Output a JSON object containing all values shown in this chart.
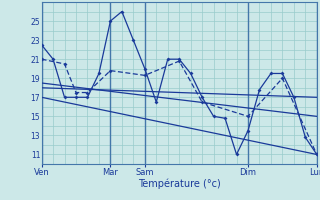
{
  "background_color": "#cce8e8",
  "grid_color": "#99cccc",
  "line_color": "#1a3a9a",
  "dark_line_color": "#2244aa",
  "xlabel": "Température (°c)",
  "ylim": [
    10,
    27
  ],
  "xlim": [
    0,
    24
  ],
  "yticks": [
    11,
    13,
    15,
    17,
    19,
    21,
    23,
    25
  ],
  "xtick_positions": [
    0,
    6,
    9,
    18,
    24
  ],
  "xtick_labels": [
    "Ven",
    "Mar",
    "Sam",
    "Dim",
    "Lun"
  ],
  "vline_positions": [
    0,
    6,
    9,
    18,
    24
  ],
  "line1_x": [
    0,
    1,
    2,
    3,
    4,
    5,
    6,
    7,
    8,
    9,
    10,
    11,
    12,
    13,
    14,
    15,
    16,
    17,
    18,
    19,
    20,
    21,
    22,
    23,
    24
  ],
  "line1_y": [
    22.5,
    21.0,
    17.0,
    17.0,
    17.0,
    19.5,
    25.0,
    26.0,
    23.0,
    20.0,
    16.5,
    21.0,
    21.0,
    19.5,
    17.0,
    15.0,
    14.8,
    11.0,
    13.5,
    17.8,
    19.5,
    19.5,
    17.0,
    12.8,
    11.0
  ],
  "line2_x": [
    0,
    2,
    3,
    4,
    6,
    9,
    12,
    14,
    18,
    21,
    24
  ],
  "line2_y": [
    21.0,
    20.5,
    17.5,
    17.5,
    19.8,
    19.3,
    20.8,
    16.5,
    15.0,
    19.0,
    11.0
  ],
  "line3_x": [
    0,
    24
  ],
  "line3_y": [
    18.0,
    17.0
  ],
  "line4_x": [
    0,
    24
  ],
  "line4_y": [
    17.0,
    11.0
  ],
  "line5_x": [
    0,
    24
  ],
  "line5_y": [
    18.5,
    15.0
  ]
}
